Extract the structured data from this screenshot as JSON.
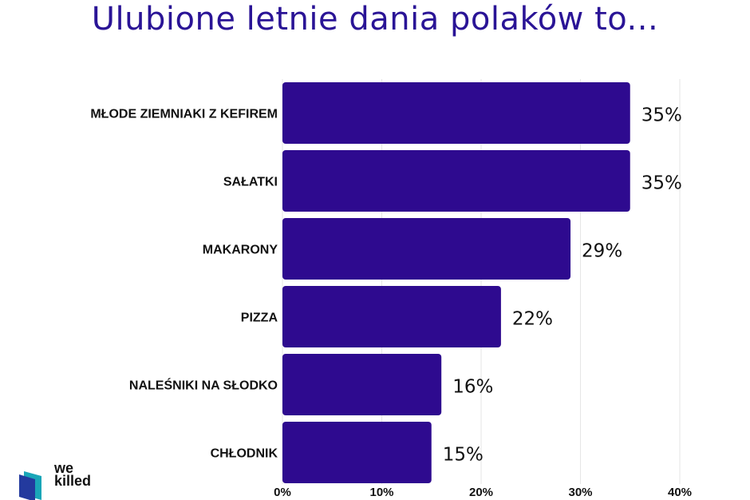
{
  "title": "Ulubione letnie dania polaków to...",
  "colors": {
    "title": "#2a1496",
    "bar": "#2e0a8f",
    "grid": "#e6e6e6",
    "logo_teal": "#1aa6b8",
    "logo_blue": "#233a9e"
  },
  "chart_data": {
    "type": "bar",
    "orientation": "horizontal",
    "title": "Ulubione letnie dania polaków to...",
    "xlabel": "",
    "ylabel": "",
    "categories": [
      "MŁODE ZIEMNIAKI Z KEFIREM",
      "SAŁATKI",
      "MAKARONY",
      "PIZZA",
      "NALEŚNIKI NA SŁODKO",
      "CHŁODNIK"
    ],
    "values": [
      35,
      35,
      29,
      22,
      16,
      15
    ],
    "value_labels": [
      "35%",
      "35%",
      "29%",
      "22%",
      "16%",
      "15%"
    ],
    "xlim": [
      0,
      40
    ],
    "xticks": [
      0,
      10,
      20,
      30,
      40
    ],
    "xtick_labels": [
      "0%",
      "10%",
      "20%",
      "30%",
      "40%"
    ],
    "grid": true,
    "legend": false
  },
  "logo": {
    "name": "we-killed-logo",
    "lines": [
      "we",
      "killed"
    ]
  }
}
